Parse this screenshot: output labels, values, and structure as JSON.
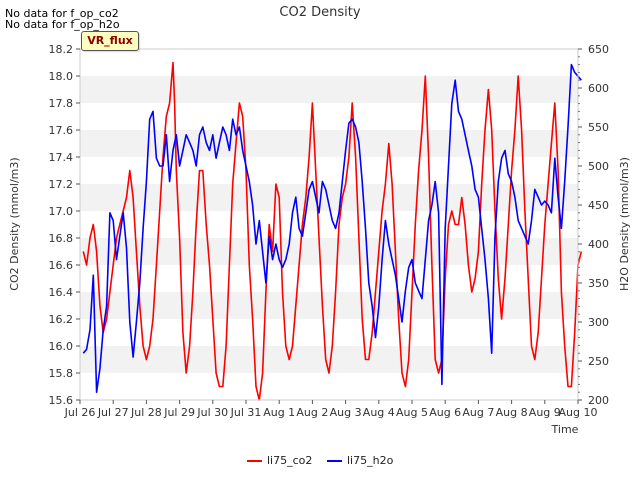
{
  "notes": [
    "No data for f_op_co2",
    "No data for f_op_h2o"
  ],
  "badge": "VR_flux",
  "chart_data": {
    "type": "line",
    "title": "CO2 Density",
    "xlabel": "Time",
    "ylabel_left": "CO2 Density (mmol/m3)",
    "ylabel_right": "H2O Density (mmol/m3)",
    "x_tick_labels": [
      "Jul 26",
      "Jul 27",
      "Jul 28",
      "Jul 29",
      "Jul 30",
      "Jul 31",
      "Aug 1",
      "Aug 2",
      "Aug 3",
      "Aug 4",
      "Aug 5",
      "Aug 6",
      "Aug 7",
      "Aug 8",
      "Aug 9",
      "Aug 10"
    ],
    "xlim_days": [
      0,
      15
    ],
    "ylim_left": [
      15.6,
      18.2
    ],
    "y_ticks_left": [
      "15.6",
      "15.8",
      "16.0",
      "16.2",
      "16.4",
      "16.6",
      "16.8",
      "17.0",
      "17.2",
      "17.4",
      "17.6",
      "17.8",
      "18.0",
      "18.2"
    ],
    "ylim_right": [
      200,
      650
    ],
    "y_ticks_right": [
      "200",
      "250",
      "300",
      "350",
      "400",
      "450",
      "500",
      "550",
      "600",
      "650"
    ],
    "grid": "horizontal bands",
    "legend_position": "bottom-center",
    "series": [
      {
        "name": "li75_co2",
        "color": "#ff0000",
        "axis": "left",
        "points": [
          [
            0.1,
            16.7
          ],
          [
            0.2,
            16.6
          ],
          [
            0.3,
            16.8
          ],
          [
            0.4,
            16.9
          ],
          [
            0.5,
            16.7
          ],
          [
            0.6,
            16.3
          ],
          [
            0.7,
            16.1
          ],
          [
            0.8,
            16.2
          ],
          [
            0.9,
            16.4
          ],
          [
            1.0,
            16.6
          ],
          [
            1.1,
            16.8
          ],
          [
            1.2,
            16.9
          ],
          [
            1.3,
            17.0
          ],
          [
            1.4,
            17.1
          ],
          [
            1.5,
            17.3
          ],
          [
            1.6,
            17.1
          ],
          [
            1.7,
            16.7
          ],
          [
            1.8,
            16.3
          ],
          [
            1.9,
            16.0
          ],
          [
            2.0,
            15.9
          ],
          [
            2.1,
            16.0
          ],
          [
            2.2,
            16.2
          ],
          [
            2.3,
            16.6
          ],
          [
            2.4,
            17.0
          ],
          [
            2.5,
            17.4
          ],
          [
            2.6,
            17.7
          ],
          [
            2.7,
            17.8
          ],
          [
            2.8,
            18.1
          ],
          [
            2.85,
            17.8
          ],
          [
            2.9,
            17.3
          ],
          [
            3.0,
            16.8
          ],
          [
            3.1,
            16.1
          ],
          [
            3.2,
            15.8
          ],
          [
            3.3,
            16.0
          ],
          [
            3.4,
            16.4
          ],
          [
            3.5,
            16.9
          ],
          [
            3.6,
            17.3
          ],
          [
            3.7,
            17.3
          ],
          [
            3.8,
            16.9
          ],
          [
            3.9,
            16.6
          ],
          [
            4.0,
            16.2
          ],
          [
            4.1,
            15.8
          ],
          [
            4.2,
            15.7
          ],
          [
            4.3,
            15.7
          ],
          [
            4.4,
            16.0
          ],
          [
            4.5,
            16.6
          ],
          [
            4.6,
            17.2
          ],
          [
            4.7,
            17.5
          ],
          [
            4.8,
            17.8
          ],
          [
            4.9,
            17.7
          ],
          [
            5.0,
            17.3
          ],
          [
            5.1,
            16.6
          ],
          [
            5.2,
            16.2
          ],
          [
            5.3,
            15.7
          ],
          [
            5.4,
            15.6
          ],
          [
            5.5,
            15.8
          ],
          [
            5.6,
            16.4
          ],
          [
            5.7,
            16.9
          ],
          [
            5.8,
            16.7
          ],
          [
            5.9,
            17.2
          ],
          [
            6.0,
            17.1
          ],
          [
            6.1,
            16.4
          ],
          [
            6.2,
            16.0
          ],
          [
            6.3,
            15.9
          ],
          [
            6.4,
            16.0
          ],
          [
            6.5,
            16.3
          ],
          [
            6.6,
            16.6
          ],
          [
            6.7,
            16.9
          ],
          [
            6.8,
            17.1
          ],
          [
            6.9,
            17.4
          ],
          [
            7.0,
            17.8
          ],
          [
            7.1,
            17.3
          ],
          [
            7.2,
            16.8
          ],
          [
            7.3,
            16.3
          ],
          [
            7.4,
            15.9
          ],
          [
            7.5,
            15.8
          ],
          [
            7.6,
            16.0
          ],
          [
            7.7,
            16.4
          ],
          [
            7.8,
            16.9
          ],
          [
            7.9,
            17.1
          ],
          [
            8.0,
            17.2
          ],
          [
            8.1,
            17.4
          ],
          [
            8.2,
            17.8
          ],
          [
            8.3,
            17.4
          ],
          [
            8.4,
            16.8
          ],
          [
            8.5,
            16.2
          ],
          [
            8.6,
            15.9
          ],
          [
            8.7,
            15.9
          ],
          [
            8.8,
            16.1
          ],
          [
            8.9,
            16.4
          ],
          [
            9.0,
            16.7
          ],
          [
            9.1,
            17.0
          ],
          [
            9.2,
            17.2
          ],
          [
            9.3,
            17.5
          ],
          [
            9.4,
            17.2
          ],
          [
            9.5,
            16.7
          ],
          [
            9.6,
            16.2
          ],
          [
            9.7,
            15.8
          ],
          [
            9.8,
            15.7
          ],
          [
            9.9,
            15.9
          ],
          [
            10.0,
            16.4
          ],
          [
            10.1,
            16.9
          ],
          [
            10.2,
            17.3
          ],
          [
            10.3,
            17.6
          ],
          [
            10.4,
            18.0
          ],
          [
            10.5,
            17.4
          ],
          [
            10.6,
            16.6
          ],
          [
            10.7,
            15.9
          ],
          [
            10.8,
            15.8
          ],
          [
            10.9,
            15.9
          ],
          [
            11.0,
            16.5
          ],
          [
            11.1,
            16.9
          ],
          [
            11.2,
            17.0
          ],
          [
            11.3,
            16.9
          ],
          [
            11.4,
            16.9
          ],
          [
            11.5,
            17.1
          ],
          [
            11.6,
            16.9
          ],
          [
            11.7,
            16.6
          ],
          [
            11.8,
            16.4
          ],
          [
            11.9,
            16.5
          ],
          [
            12.0,
            16.7
          ],
          [
            12.1,
            17.2
          ],
          [
            12.2,
            17.6
          ],
          [
            12.3,
            17.9
          ],
          [
            12.4,
            17.6
          ],
          [
            12.5,
            17.0
          ],
          [
            12.6,
            16.5
          ],
          [
            12.7,
            16.2
          ],
          [
            12.8,
            16.5
          ],
          [
            12.9,
            16.9
          ],
          [
            13.0,
            17.3
          ],
          [
            13.1,
            17.6
          ],
          [
            13.2,
            18.0
          ],
          [
            13.3,
            17.6
          ],
          [
            13.4,
            17.0
          ],
          [
            13.5,
            16.5
          ],
          [
            13.6,
            16.0
          ],
          [
            13.7,
            15.9
          ],
          [
            13.8,
            16.1
          ],
          [
            13.9,
            16.5
          ],
          [
            14.0,
            16.9
          ],
          [
            14.1,
            17.2
          ],
          [
            14.2,
            17.5
          ],
          [
            14.3,
            17.8
          ],
          [
            14.4,
            17.3
          ],
          [
            14.5,
            16.4
          ],
          [
            14.6,
            16.0
          ],
          [
            14.7,
            15.7
          ],
          [
            14.8,
            15.7
          ],
          [
            14.9,
            16.1
          ],
          [
            15.0,
            16.6
          ],
          [
            15.1,
            16.7
          ]
        ]
      },
      {
        "name": "li75_h2o",
        "color": "#0000ff",
        "axis": "right",
        "points": [
          [
            0.1,
            260
          ],
          [
            0.2,
            265
          ],
          [
            0.3,
            290
          ],
          [
            0.4,
            360
          ],
          [
            0.5,
            210
          ],
          [
            0.6,
            240
          ],
          [
            0.7,
            290
          ],
          [
            0.8,
            320
          ],
          [
            0.9,
            440
          ],
          [
            1.0,
            430
          ],
          [
            1.1,
            380
          ],
          [
            1.2,
            410
          ],
          [
            1.3,
            440
          ],
          [
            1.4,
            395
          ],
          [
            1.5,
            300
          ],
          [
            1.6,
            255
          ],
          [
            1.7,
            300
          ],
          [
            1.8,
            350
          ],
          [
            1.9,
            420
          ],
          [
            2.0,
            480
          ],
          [
            2.1,
            560
          ],
          [
            2.2,
            570
          ],
          [
            2.3,
            510
          ],
          [
            2.4,
            500
          ],
          [
            2.5,
            500
          ],
          [
            2.6,
            540
          ],
          [
            2.7,
            480
          ],
          [
            2.8,
            520
          ],
          [
            2.9,
            540
          ],
          [
            3.0,
            500
          ],
          [
            3.1,
            520
          ],
          [
            3.2,
            540
          ],
          [
            3.3,
            530
          ],
          [
            3.4,
            520
          ],
          [
            3.5,
            500
          ],
          [
            3.6,
            540
          ],
          [
            3.7,
            550
          ],
          [
            3.8,
            530
          ],
          [
            3.9,
            520
          ],
          [
            4.0,
            540
          ],
          [
            4.1,
            510
          ],
          [
            4.2,
            530
          ],
          [
            4.3,
            550
          ],
          [
            4.4,
            540
          ],
          [
            4.5,
            520
          ],
          [
            4.6,
            560
          ],
          [
            4.7,
            540
          ],
          [
            4.8,
            550
          ],
          [
            4.9,
            520
          ],
          [
            5.0,
            500
          ],
          [
            5.1,
            480
          ],
          [
            5.2,
            450
          ],
          [
            5.3,
            400
          ],
          [
            5.4,
            430
          ],
          [
            5.5,
            390
          ],
          [
            5.6,
            350
          ],
          [
            5.7,
            410
          ],
          [
            5.8,
            380
          ],
          [
            5.9,
            400
          ],
          [
            6.0,
            380
          ],
          [
            6.1,
            370
          ],
          [
            6.2,
            380
          ],
          [
            6.3,
            400
          ],
          [
            6.4,
            440
          ],
          [
            6.5,
            460
          ],
          [
            6.6,
            420
          ],
          [
            6.7,
            410
          ],
          [
            6.8,
            440
          ],
          [
            6.9,
            470
          ],
          [
            7.0,
            480
          ],
          [
            7.1,
            460
          ],
          [
            7.2,
            440
          ],
          [
            7.3,
            480
          ],
          [
            7.4,
            470
          ],
          [
            7.5,
            450
          ],
          [
            7.6,
            430
          ],
          [
            7.7,
            420
          ],
          [
            7.8,
            440
          ],
          [
            7.9,
            480
          ],
          [
            8.0,
            520
          ],
          [
            8.1,
            555
          ],
          [
            8.2,
            560
          ],
          [
            8.3,
            550
          ],
          [
            8.4,
            530
          ],
          [
            8.5,
            480
          ],
          [
            8.6,
            420
          ],
          [
            8.7,
            350
          ],
          [
            8.8,
            320
          ],
          [
            8.9,
            280
          ],
          [
            9.0,
            320
          ],
          [
            9.1,
            380
          ],
          [
            9.2,
            430
          ],
          [
            9.3,
            400
          ],
          [
            9.4,
            380
          ],
          [
            9.5,
            360
          ],
          [
            9.6,
            330
          ],
          [
            9.7,
            300
          ],
          [
            9.8,
            340
          ],
          [
            9.9,
            370
          ],
          [
            10.0,
            380
          ],
          [
            10.1,
            350
          ],
          [
            10.2,
            340
          ],
          [
            10.3,
            330
          ],
          [
            10.4,
            380
          ],
          [
            10.5,
            430
          ],
          [
            10.6,
            450
          ],
          [
            10.7,
            480
          ],
          [
            10.8,
            440
          ],
          [
            10.9,
            220
          ],
          [
            11.0,
            420
          ],
          [
            11.1,
            500
          ],
          [
            11.2,
            580
          ],
          [
            11.3,
            610
          ],
          [
            11.4,
            570
          ],
          [
            11.5,
            560
          ],
          [
            11.6,
            540
          ],
          [
            11.7,
            520
          ],
          [
            11.8,
            500
          ],
          [
            11.9,
            470
          ],
          [
            12.0,
            460
          ],
          [
            12.1,
            420
          ],
          [
            12.2,
            380
          ],
          [
            12.3,
            330
          ],
          [
            12.4,
            260
          ],
          [
            12.5,
            410
          ],
          [
            12.6,
            480
          ],
          [
            12.7,
            510
          ],
          [
            12.8,
            520
          ],
          [
            12.9,
            490
          ],
          [
            13.0,
            480
          ],
          [
            13.1,
            460
          ],
          [
            13.2,
            430
          ],
          [
            13.3,
            420
          ],
          [
            13.4,
            410
          ],
          [
            13.5,
            400
          ],
          [
            13.6,
            430
          ],
          [
            13.7,
            470
          ],
          [
            13.8,
            460
          ],
          [
            13.9,
            450
          ],
          [
            14.0,
            455
          ],
          [
            14.1,
            450
          ],
          [
            14.2,
            440
          ],
          [
            14.3,
            510
          ],
          [
            14.4,
            460
          ],
          [
            14.5,
            420
          ],
          [
            14.6,
            480
          ],
          [
            14.7,
            550
          ],
          [
            14.8,
            630
          ],
          [
            14.9,
            620
          ],
          [
            15.0,
            615
          ],
          [
            15.1,
            610
          ]
        ]
      }
    ]
  }
}
